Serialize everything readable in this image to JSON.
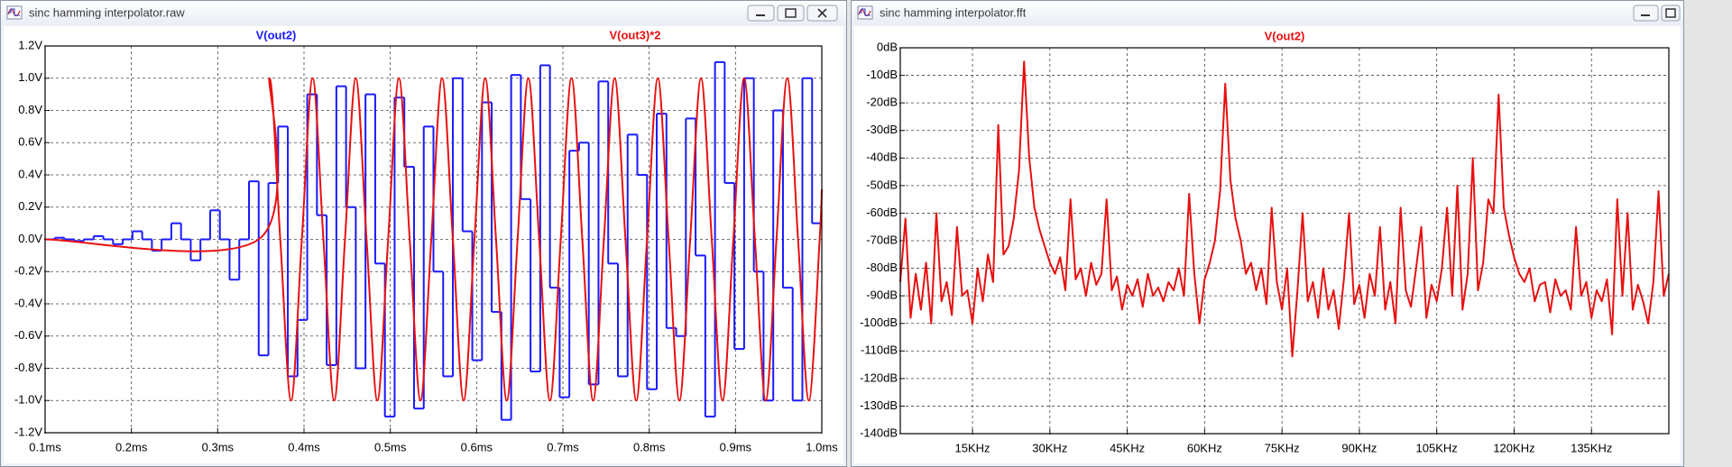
{
  "windows": [
    {
      "title": "sinc hamming interpolator.raw"
    },
    {
      "title": "sinc hamming interpolator.fft"
    }
  ],
  "chart_data": [
    {
      "type": "line",
      "grid": true,
      "xlim": [
        0.1,
        1.0
      ],
      "xticks": [
        {
          "value": 0.1,
          "label": "0.1ms"
        },
        {
          "value": 0.2,
          "label": "0.2ms"
        },
        {
          "value": 0.3,
          "label": "0.3ms"
        },
        {
          "value": 0.4,
          "label": "0.4ms"
        },
        {
          "value": 0.5,
          "label": "0.5ms"
        },
        {
          "value": 0.6,
          "label": "0.6ms"
        },
        {
          "value": 0.7,
          "label": "0.7ms"
        },
        {
          "value": 0.8,
          "label": "0.8ms"
        },
        {
          "value": 0.9,
          "label": "0.9ms"
        },
        {
          "value": 1.0,
          "label": "1.0ms"
        }
      ],
      "ylim": [
        -1.2,
        1.2
      ],
      "yticks": [
        {
          "value": -1.2,
          "label": "-1.2V"
        },
        {
          "value": -1.0,
          "label": "-1.0V"
        },
        {
          "value": -0.8,
          "label": "-0.8V"
        },
        {
          "value": -0.6,
          "label": "-0.6V"
        },
        {
          "value": -0.4,
          "label": "-0.4V"
        },
        {
          "value": -0.2,
          "label": "-0.2V"
        },
        {
          "value": 0.0,
          "label": "0.0V"
        },
        {
          "value": 0.2,
          "label": "0.2V"
        },
        {
          "value": 0.4,
          "label": "0.4V"
        },
        {
          "value": 0.6,
          "label": "0.6V"
        },
        {
          "value": 0.8,
          "label": "0.8V"
        },
        {
          "value": 1.0,
          "label": "1.0V"
        },
        {
          "value": 1.2,
          "label": "1.2V"
        }
      ],
      "series": [
        {
          "name": "V(out2)",
          "color": "#1a1aff",
          "step": true,
          "x": [
            0.1,
            0.11125,
            0.1225,
            0.13375,
            0.145,
            0.15625,
            0.1675,
            0.17875,
            0.19,
            0.20125,
            0.2125,
            0.22375,
            0.235,
            0.24625,
            0.2575,
            0.26875,
            0.28,
            0.29125,
            0.3025,
            0.31375,
            0.325,
            0.33625,
            0.3475,
            0.35875,
            0.37,
            0.38125,
            0.3925,
            0.40375,
            0.415,
            0.42625,
            0.4375,
            0.44875,
            0.46,
            0.47125,
            0.4825,
            0.49375,
            0.505,
            0.51625,
            0.5275,
            0.53875,
            0.55,
            0.56125,
            0.5725,
            0.58375,
            0.595,
            0.60625,
            0.6175,
            0.62875,
            0.64,
            0.65125,
            0.6625,
            0.67375,
            0.685,
            0.69625,
            0.7075,
            0.71875,
            0.73,
            0.74125,
            0.7525,
            0.76375,
            0.775,
            0.78625,
            0.7975,
            0.80875,
            0.82,
            0.83125,
            0.8425,
            0.85375,
            0.865,
            0.87625,
            0.8875,
            0.89875,
            0.91,
            0.92125,
            0.9325,
            0.94375,
            0.955,
            0.96625,
            0.9775,
            0.98875,
            1.0
          ],
          "values": [
            0,
            0.01,
            0,
            -0.01,
            0,
            0.02,
            0,
            -0.03,
            0,
            0.05,
            0,
            -0.07,
            0,
            0.1,
            0,
            -0.13,
            0,
            0.18,
            0,
            -0.25,
            0,
            0.36,
            -0.72,
            0.35,
            0.7,
            -0.85,
            -0.5,
            0.9,
            0.15,
            -0.78,
            0.95,
            0.2,
            -0.8,
            0.9,
            -0.15,
            -1.1,
            0.88,
            0.45,
            -1.05,
            0.7,
            -0.2,
            -0.85,
            1.0,
            0.05,
            -0.75,
            0.85,
            -0.45,
            -1.12,
            1.02,
            0.25,
            -0.82,
            1.08,
            -0.3,
            -0.98,
            0.55,
            0.6,
            -0.9,
            0.98,
            -0.15,
            -0.85,
            0.65,
            0.4,
            -0.93,
            0.78,
            -0.55,
            -0.6,
            0.75,
            -0.1,
            -1.1,
            1.1,
            0.35,
            -0.68,
            1.0,
            -0.2,
            -1.0,
            0.8,
            -0.3,
            -1.0,
            1.0,
            0.1,
            0.1
          ]
        },
        {
          "name": "V(out3)*2",
          "color": "#e81010",
          "smooth": true,
          "x": [
            0.1,
            0.3475,
            0.36,
            0.3725,
            0.385,
            0.3975,
            0.41,
            0.4225,
            0.435,
            0.4475,
            0.46,
            0.4725,
            0.485,
            0.4975,
            0.51,
            0.5225,
            0.535,
            0.5475,
            0.56,
            0.5725,
            0.585,
            0.5975,
            0.61,
            0.6225,
            0.635,
            0.6475,
            0.66,
            0.6725,
            0.685,
            0.6975,
            0.71,
            0.7225,
            0.735,
            0.7475,
            0.76,
            0.7725,
            0.785,
            0.7975,
            0.81,
            0.8225,
            0.835,
            0.8475,
            0.86,
            0.8725,
            0.885,
            0.8975,
            0.91,
            0.9225,
            0.935,
            0.9475,
            0.96,
            0.9725,
            0.985,
            0.9975,
            1.0
          ],
          "values": [
            0,
            0,
            1,
            0,
            -1,
            0,
            1,
            0,
            -1,
            0,
            1,
            0,
            -1,
            0,
            1,
            0,
            -1,
            0,
            1,
            0,
            -1,
            0,
            1,
            0,
            -1,
            0,
            1,
            0,
            -1,
            0,
            1,
            0,
            -1,
            0,
            1,
            0,
            -1,
            0,
            1,
            0,
            -1,
            0,
            1,
            0,
            -1,
            0,
            1,
            0,
            -1,
            0,
            1,
            0,
            -1,
            0,
            0.31
          ]
        }
      ]
    },
    {
      "type": "line",
      "grid": true,
      "xlim": [
        1,
        150
      ],
      "xticks": [
        {
          "value": 15,
          "label": "15KHz"
        },
        {
          "value": 30,
          "label": "30KHz"
        },
        {
          "value": 45,
          "label": "45KHz"
        },
        {
          "value": 60,
          "label": "60KHz"
        },
        {
          "value": 75,
          "label": "75KHz"
        },
        {
          "value": 90,
          "label": "90KHz"
        },
        {
          "value": 105,
          "label": "105KHz"
        },
        {
          "value": 120,
          "label": "120KHz"
        },
        {
          "value": 135,
          "label": "135KHz"
        }
      ],
      "ylim": [
        -140,
        0
      ],
      "yticks": [
        {
          "value": 0,
          "label": "0dB"
        },
        {
          "value": -10,
          "label": "-10dB"
        },
        {
          "value": -20,
          "label": "-20dB"
        },
        {
          "value": -30,
          "label": "-30dB"
        },
        {
          "value": -40,
          "label": "-40dB"
        },
        {
          "value": -50,
          "label": "-50dB"
        },
        {
          "value": -60,
          "label": "-60dB"
        },
        {
          "value": -70,
          "label": "-70dB"
        },
        {
          "value": -80,
          "label": "-80dB"
        },
        {
          "value": -90,
          "label": "-90dB"
        },
        {
          "value": -100,
          "label": "-100dB"
        },
        {
          "value": -110,
          "label": "-110dB"
        },
        {
          "value": -120,
          "label": "-120dB"
        },
        {
          "value": -130,
          "label": "-130dB"
        },
        {
          "value": -140,
          "label": "-140dB"
        }
      ],
      "series": [
        {
          "name": "V(out2)",
          "color": "#e81010",
          "x": [
            1,
            2,
            3,
            4,
            5,
            6,
            7,
            8,
            9,
            10,
            11,
            12,
            13,
            14,
            15,
            16,
            17,
            18,
            19,
            20,
            21,
            22,
            23,
            24,
            25,
            26,
            27,
            28,
            29,
            30,
            31,
            32,
            33,
            34,
            35,
            36,
            37,
            38,
            39,
            40,
            41,
            42,
            43,
            44,
            45,
            46,
            47,
            48,
            49,
            50,
            51,
            52,
            53,
            54,
            55,
            56,
            57,
            58,
            59,
            60,
            61,
            62,
            63,
            64,
            65,
            66,
            67,
            68,
            69,
            70,
            71,
            72,
            73,
            74,
            75,
            76,
            77,
            78,
            79,
            80,
            81,
            82,
            83,
            84,
            85,
            86,
            87,
            88,
            89,
            90,
            91,
            92,
            93,
            94,
            95,
            96,
            97,
            98,
            99,
            100,
            101,
            102,
            103,
            104,
            105,
            106,
            107,
            108,
            109,
            110,
            111,
            112,
            113,
            114,
            115,
            116,
            117,
            118,
            119,
            120,
            121,
            122,
            123,
            124,
            125,
            126,
            127,
            128,
            129,
            130,
            131,
            132,
            133,
            134,
            135,
            136,
            137,
            138,
            139,
            140,
            141,
            142,
            143,
            144,
            145,
            146,
            147,
            148,
            149,
            150
          ],
          "values": [
            -85,
            -62,
            -98,
            -82,
            -95,
            -78,
            -100,
            -60,
            -92,
            -85,
            -97,
            -65,
            -90,
            -88,
            -100,
            -80,
            -92,
            -75,
            -85,
            -28,
            -75,
            -72,
            -62,
            -45,
            -5,
            -40,
            -58,
            -66,
            -72,
            -78,
            -82,
            -76,
            -88,
            -55,
            -84,
            -80,
            -90,
            -78,
            -86,
            -82,
            -55,
            -88,
            -83,
            -95,
            -86,
            -90,
            -84,
            -94,
            -82,
            -90,
            -87,
            -92,
            -85,
            -88,
            -80,
            -90,
            -53,
            -82,
            -100,
            -84,
            -78,
            -70,
            -52,
            -13,
            -48,
            -62,
            -70,
            -82,
            -78,
            -88,
            -80,
            -93,
            -58,
            -85,
            -95,
            -80,
            -112,
            -88,
            -60,
            -92,
            -85,
            -98,
            -80,
            -95,
            -88,
            -102,
            -84,
            -60,
            -93,
            -86,
            -98,
            -82,
            -90,
            -65,
            -95,
            -85,
            -100,
            -58,
            -88,
            -94,
            -80,
            -65,
            -98,
            -86,
            -92,
            -80,
            -58,
            -90,
            -50,
            -95,
            -82,
            -40,
            -88,
            -78,
            -55,
            -60,
            -17,
            -58,
            -68,
            -76,
            -82,
            -85,
            -80,
            -92,
            -86,
            -85,
            -96,
            -84,
            -90,
            -88,
            -95,
            -65,
            -90,
            -85,
            -98,
            -88,
            -92,
            -84,
            -104,
            -55,
            -90,
            -60,
            -95,
            -86,
            -92,
            -100,
            -85,
            -52,
            -90,
            -82
          ]
        }
      ]
    }
  ]
}
